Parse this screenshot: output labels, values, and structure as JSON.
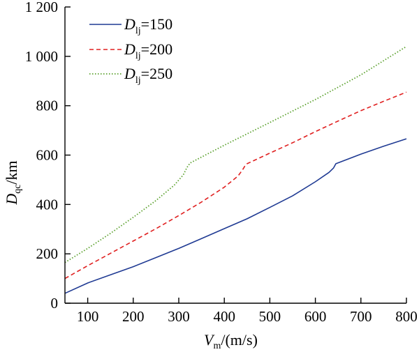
{
  "chart_data": {
    "type": "line",
    "xlabel": {
      "base": "V",
      "sub": "m",
      "unit": "/(m/s)"
    },
    "ylabel": {
      "base": "D",
      "sub": "qc",
      "unit": "/km"
    },
    "xlim": [
      50,
      800
    ],
    "ylim": [
      0,
      1200
    ],
    "xticks": [
      100,
      200,
      300,
      400,
      500,
      600,
      700,
      800
    ],
    "xtick_labels": [
      "100",
      "200",
      "300",
      "400",
      "500",
      "600",
      "700",
      "800"
    ],
    "yticks": [
      0,
      200,
      400,
      600,
      800,
      1000,
      1200
    ],
    "ytick_labels": [
      "0",
      "200",
      "400",
      "600",
      "800",
      "1 000",
      "1 200"
    ],
    "grid": false,
    "legend_position": "top-left",
    "series": [
      {
        "base": "D",
        "sub": "lj",
        "value": "=150",
        "color": "#1f3a93",
        "dash": "solid",
        "points": [
          [
            50,
            40
          ],
          [
            100,
            82
          ],
          [
            150,
            115
          ],
          [
            200,
            148
          ],
          [
            250,
            185
          ],
          [
            300,
            222
          ],
          [
            350,
            262
          ],
          [
            400,
            302
          ],
          [
            450,
            342
          ],
          [
            500,
            388
          ],
          [
            550,
            435
          ],
          [
            600,
            492
          ],
          [
            630,
            530
          ],
          [
            640,
            548
          ],
          [
            645,
            565
          ],
          [
            700,
            604
          ],
          [
            750,
            636
          ],
          [
            800,
            666
          ]
        ]
      },
      {
        "base": "D",
        "sub": "lj",
        "value": "=200",
        "color": "#e02020",
        "dash": "dashed",
        "points": [
          [
            50,
            100
          ],
          [
            100,
            152
          ],
          [
            150,
            202
          ],
          [
            200,
            252
          ],
          [
            250,
            302
          ],
          [
            300,
            355
          ],
          [
            350,
            410
          ],
          [
            400,
            470
          ],
          [
            430,
            515
          ],
          [
            440,
            540
          ],
          [
            445,
            555
          ],
          [
            450,
            565
          ],
          [
            500,
            608
          ],
          [
            550,
            650
          ],
          [
            600,
            695
          ],
          [
            650,
            738
          ],
          [
            700,
            780
          ],
          [
            750,
            818
          ],
          [
            800,
            855
          ]
        ]
      },
      {
        "base": "D",
        "sub": "lj",
        "value": "=250",
        "color": "#5aa02c",
        "dash": "dotted",
        "points": [
          [
            50,
            165
          ],
          [
            100,
            222
          ],
          [
            150,
            283
          ],
          [
            200,
            348
          ],
          [
            250,
            416
          ],
          [
            290,
            478
          ],
          [
            310,
            520
          ],
          [
            318,
            550
          ],
          [
            325,
            568
          ],
          [
            400,
            640
          ],
          [
            500,
            732
          ],
          [
            600,
            825
          ],
          [
            700,
            925
          ],
          [
            800,
            1040
          ]
        ]
      }
    ]
  }
}
